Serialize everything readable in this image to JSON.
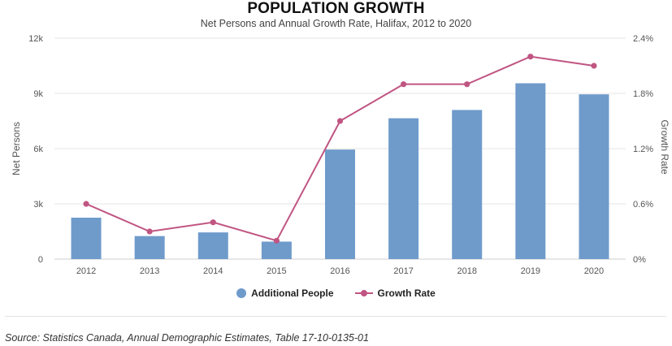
{
  "chart_data": {
    "type": "bar",
    "title": "POPULATION GROWTH",
    "subtitle": "Net Persons and Annual Growth Rate, Halifax, 2012 to 2020",
    "categories": [
      "2012",
      "2013",
      "2014",
      "2015",
      "2016",
      "2017",
      "2018",
      "2019",
      "2020"
    ],
    "series": [
      {
        "name": "Additional People",
        "type": "bar",
        "axis": "left",
        "values": [
          2250,
          1250,
          1450,
          950,
          5950,
          7650,
          8100,
          9550,
          8950
        ]
      },
      {
        "name": "Growth Rate",
        "type": "line",
        "axis": "right",
        "values": [
          0.6,
          0.3,
          0.4,
          0.2,
          1.5,
          1.9,
          1.9,
          2.2,
          2.1
        ]
      }
    ],
    "ylabel": "Net Persons",
    "ylabel_right": "Growth Rate",
    "ylim": [
      0,
      12000
    ],
    "ylim_right": [
      0,
      2.4
    ],
    "yticks": [
      "0",
      "3k",
      "6k",
      "9k",
      "12k"
    ],
    "yticks_right": [
      "0%",
      "0.6%",
      "1.2%",
      "1.8%",
      "2.4%"
    ],
    "grid": true,
    "legend_position": "bottom",
    "colors": {
      "bar": "#6f9bcb",
      "line": "#c05582"
    }
  },
  "footer": {
    "source": "Source: Statistics Canada, Annual Demographic Estimates, Table 17-10-0135-01"
  }
}
